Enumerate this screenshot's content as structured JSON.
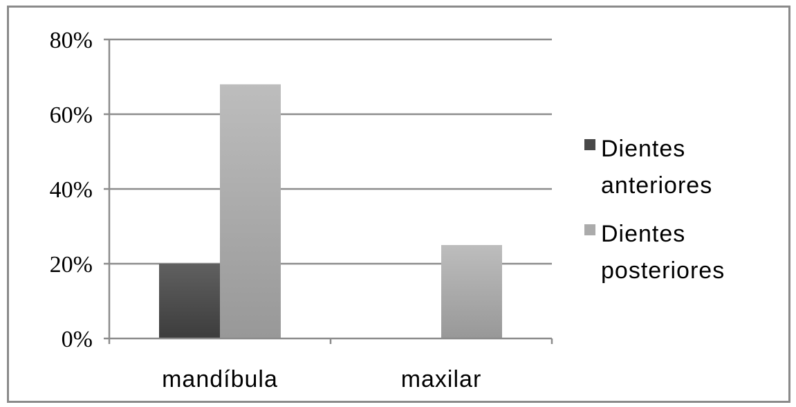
{
  "chart_data": {
    "type": "bar",
    "title": "",
    "xlabel": "",
    "ylabel": "",
    "categories": [
      "mandíbula",
      "maxilar"
    ],
    "series": [
      {
        "name": "Dientes anteriores",
        "legend_lines": [
          "Dientes",
          "anteriores"
        ],
        "values": [
          20,
          0
        ],
        "color": "#555555"
      },
      {
        "name": "Dientes posteriores",
        "legend_lines": [
          "Dientes",
          "posteriores"
        ],
        "values": [
          68,
          25
        ],
        "color": "#b0b0b0"
      }
    ],
    "ylim": [
      0,
      80
    ],
    "yticks": [
      0,
      20,
      40,
      60,
      80
    ],
    "ytick_labels": [
      "0%",
      "20%",
      "40%",
      "60%",
      "80%"
    ],
    "grid": true,
    "legend_position": "right"
  }
}
